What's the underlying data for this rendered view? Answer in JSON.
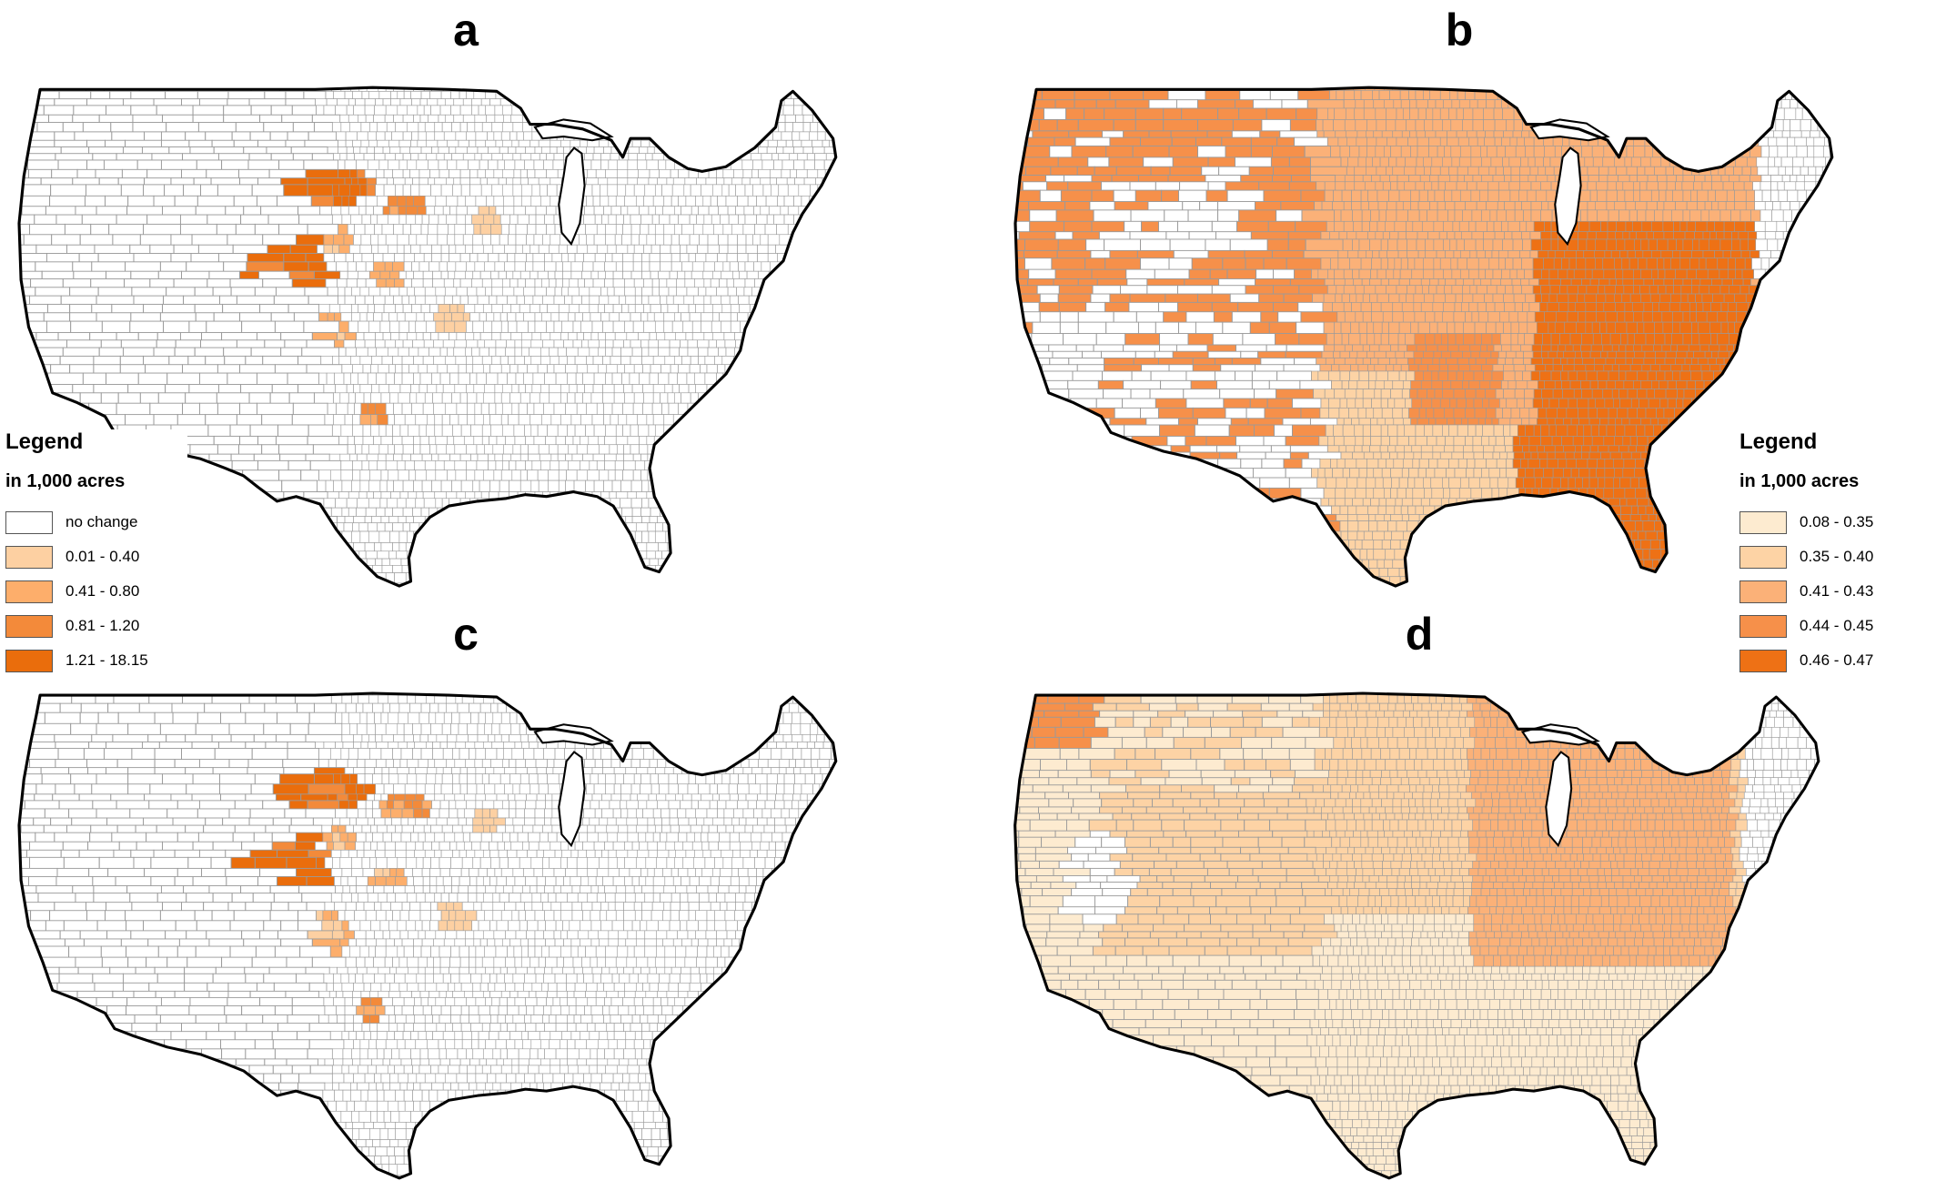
{
  "panels": [
    {
      "label": "a"
    },
    {
      "label": "b"
    },
    {
      "label": "c"
    },
    {
      "label": "d"
    }
  ],
  "legend_left": {
    "title": "Legend",
    "units": "in 1,000 acres",
    "items": [
      {
        "label": "no change",
        "color": "#ffffff"
      },
      {
        "label": "0.01 - 0.40",
        "color": "#fdd0a2"
      },
      {
        "label": "0.41 - 0.80",
        "color": "#fdae6b"
      },
      {
        "label": "0.81 - 1.20",
        "color": "#f38a3a"
      },
      {
        "label": "1.21 - 18.15",
        "color": "#ea6d0c"
      }
    ]
  },
  "legend_right": {
    "title": "Legend",
    "units": "in 1,000 acres",
    "items": [
      {
        "label": "0.08 - 0.35",
        "color": "#fdebd0"
      },
      {
        "label": "0.35 - 0.40",
        "color": "#fdd3a5"
      },
      {
        "label": "0.41 - 0.43",
        "color": "#fbb178"
      },
      {
        "label": "0.44 - 0.45",
        "color": "#f6904a"
      },
      {
        "label": "0.46 - 0.47",
        "color": "#ee7115"
      }
    ]
  },
  "colors": {
    "county_line": "#9a9a9a",
    "border": "#000000",
    "land_default": "#ffffff"
  }
}
